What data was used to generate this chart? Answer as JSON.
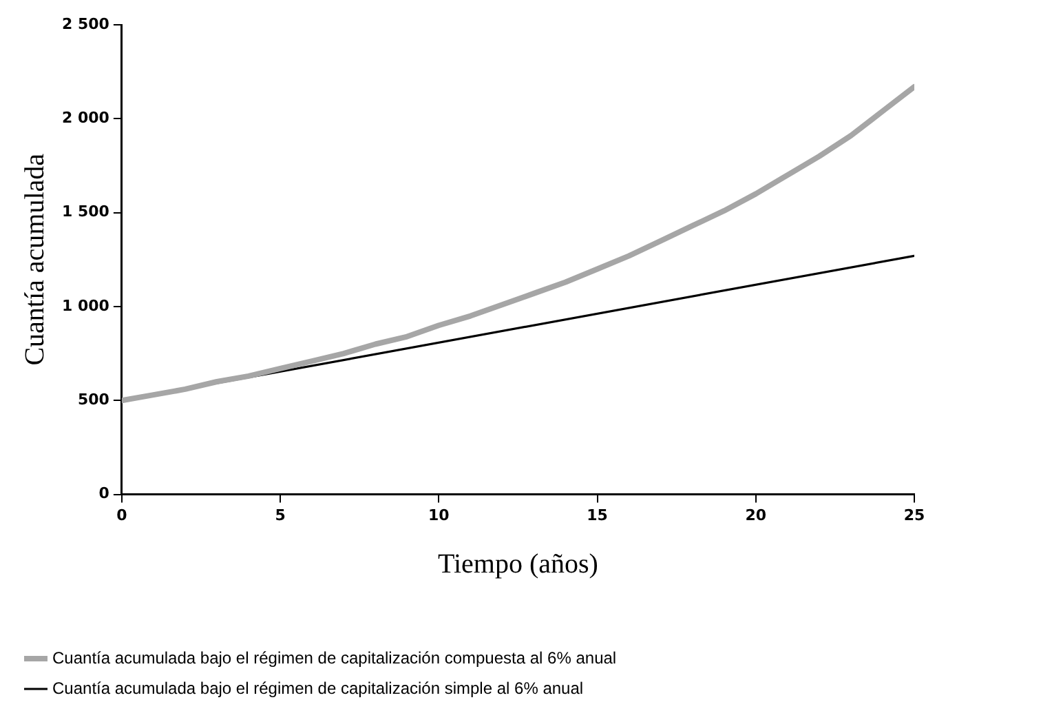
{
  "chart_data": {
    "type": "line",
    "xlabel": "Tiempo (años)",
    "ylabel": "Cuantía acumulada",
    "x": [
      0,
      1,
      2,
      3,
      4,
      5,
      6,
      7,
      8,
      9,
      10,
      11,
      12,
      13,
      14,
      15,
      16,
      17,
      18,
      19,
      20,
      21,
      22,
      23,
      24,
      25
    ],
    "xlim": [
      0,
      25
    ],
    "xticks": [
      0,
      5,
      10,
      15,
      20,
      25
    ],
    "ylim": [
      0,
      2500
    ],
    "yticks": [
      {
        "value": 0,
        "label": "0"
      },
      {
        "value": 500,
        "label": "500"
      },
      {
        "value": 1000,
        "label": "1 000"
      },
      {
        "value": 1500,
        "label": "1 500"
      },
      {
        "value": 2000,
        "label": "2 000"
      },
      {
        "value": 2500,
        "label": "2 500"
      }
    ],
    "grid": false,
    "legend": "bottom",
    "marker": "none",
    "line_style": "solid",
    "series": [
      {
        "name": "Cuantía acumulada bajo el régimen de capitalización compuesta al 6% anual",
        "color": "#a6a6a6",
        "values": [
          500,
          530,
          560,
          600,
          630,
          670,
          710,
          750,
          800,
          840,
          900,
          950,
          1010,
          1070,
          1130,
          1200,
          1270,
          1350,
          1430,
          1510,
          1600,
          1700,
          1800,
          1910,
          2040,
          2170
        ]
      },
      {
        "name": "Cuantía acumulada bajo el régimen de capitalización simple al 6% anual",
        "color": "#000000",
        "x": [
          0,
          25
        ],
        "values": [
          500,
          1270
        ]
      }
    ]
  }
}
